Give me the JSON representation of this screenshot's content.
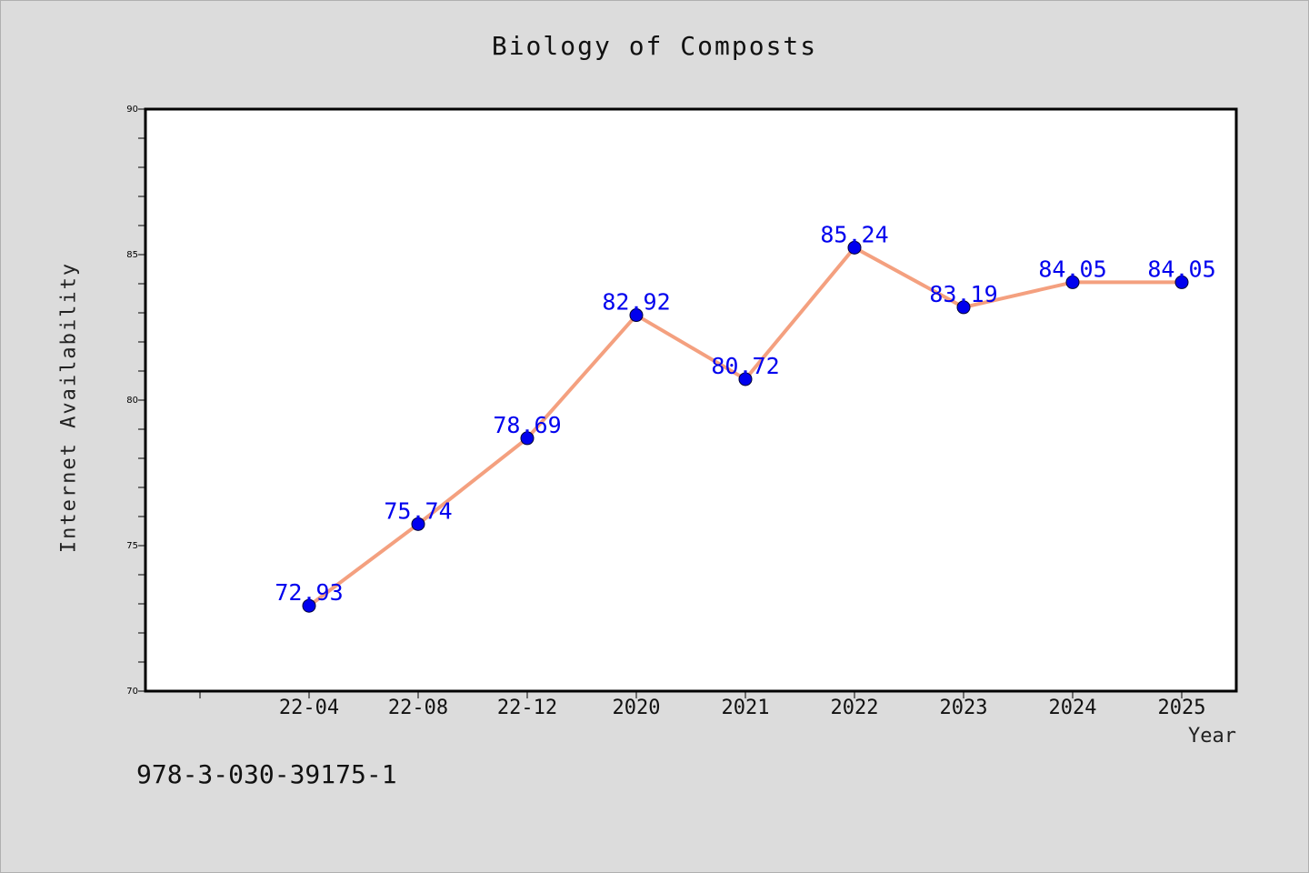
{
  "chart_data": {
    "type": "line",
    "title": "Biology of Composts",
    "xlabel": "Year",
    "ylabel": "Internet Availability",
    "categories": [
      "22-04",
      "22-08",
      "22-12",
      "2020",
      "2021",
      "2022",
      "2023",
      "2024",
      "2025"
    ],
    "series": [
      {
        "values": [
          72.93,
          75.74,
          78.69,
          82.92,
          80.72,
          85.24,
          83.19,
          84.05,
          84.05
        ],
        "line_color": "#f4a07f",
        "marker_color": "#0000ee",
        "label_color": "#0000ee"
      }
    ],
    "ylim": [
      70,
      90
    ],
    "yticks": [
      70,
      75,
      80,
      85,
      90
    ],
    "grid": false,
    "legend": "none"
  },
  "footnote": "978-3-030-39175-1"
}
